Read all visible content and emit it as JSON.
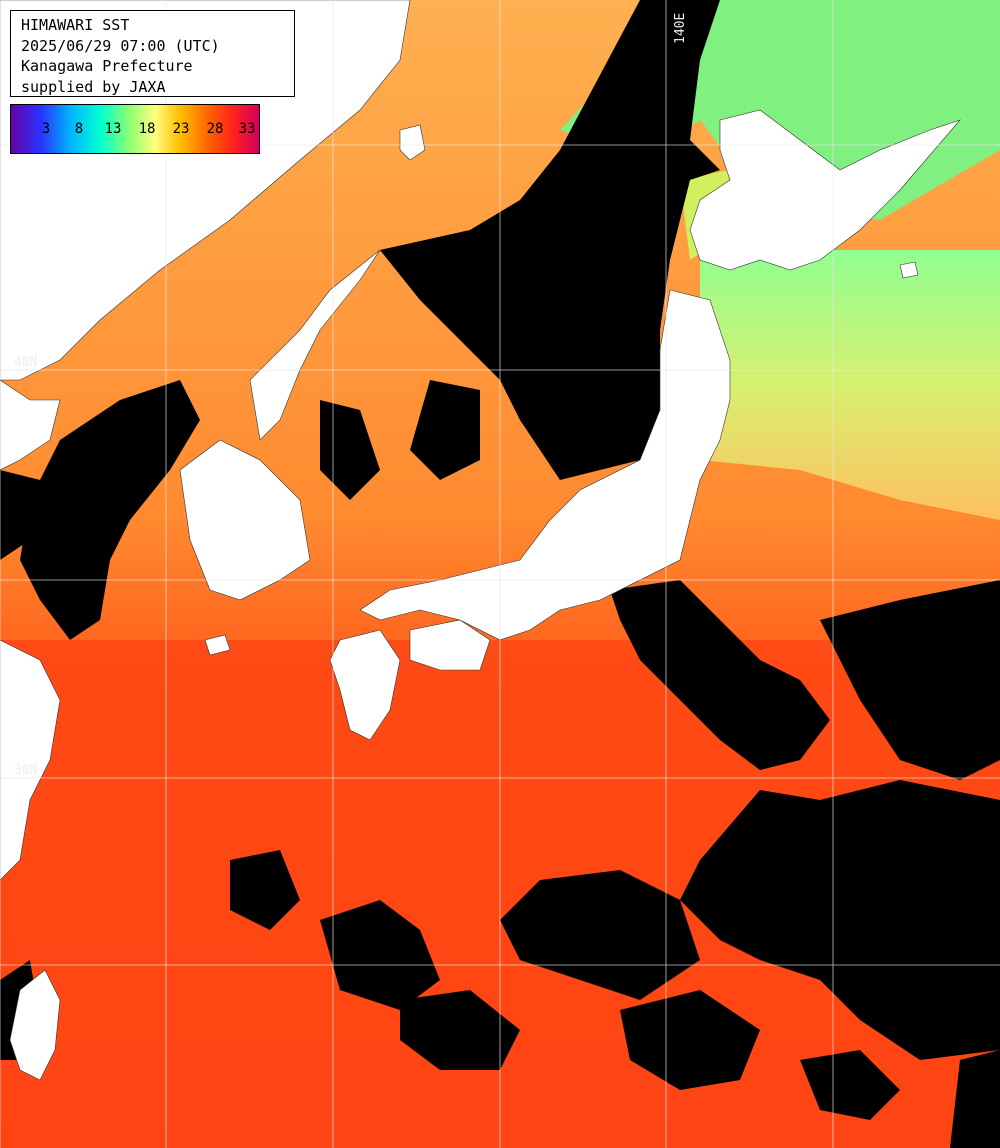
{
  "header": {
    "title": "HIMAWARI SST",
    "datetime": "2025/06/29 07:00 (UTC)",
    "region": "Kanagawa Prefecture",
    "credit": "supplied by JAXA"
  },
  "legend": {
    "ticks": [
      "3",
      "8",
      "13",
      "18",
      "23",
      "28",
      "33"
    ],
    "colors": [
      "#6a00a8",
      "#2a32ff",
      "#00b4ff",
      "#00ffd0",
      "#8fff70",
      "#ffff80",
      "#ffc000",
      "#ff6000",
      "#ff2020",
      "#d00060"
    ]
  },
  "grid_labels": {
    "lon_140": "140E",
    "lat_40": "40N",
    "lat_30": "30N"
  },
  "colors": {
    "land": "#ffffff",
    "cloud": "#000000",
    "warm_sea": "#ff3d10",
    "mid_sea": "#ff8a30",
    "cool_sea": "#c8f070"
  }
}
